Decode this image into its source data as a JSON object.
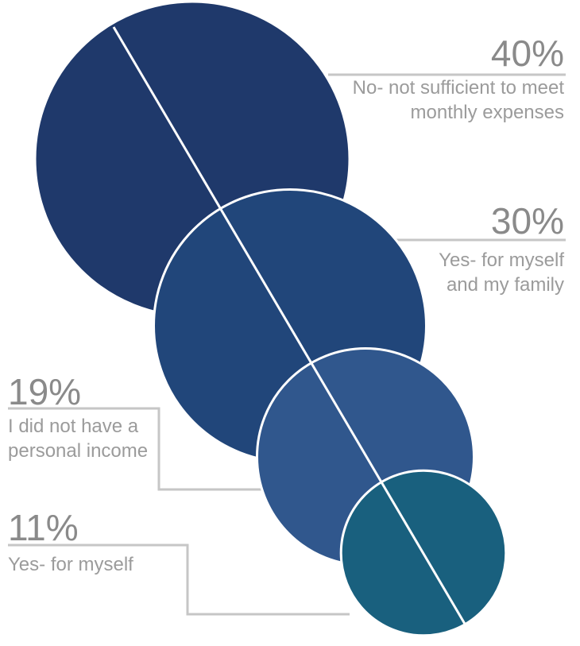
{
  "chart_data": {
    "type": "bubble",
    "title": "",
    "series": [
      {
        "label": "No- not sufficient to meet monthly expenses",
        "value": 40,
        "percent_label": "40%",
        "color": "#1f396b"
      },
      {
        "label": "Yes- for myself and my family",
        "value": 30,
        "percent_label": "30%",
        "color": "#21467a"
      },
      {
        "label": "I did not have a personal income",
        "value": 19,
        "percent_label": "19%",
        "color": "#30578d"
      },
      {
        "label": "Yes- for myself",
        "value": 11,
        "percent_label": "11%",
        "color": "#19607e"
      }
    ]
  },
  "colors": {
    "label_text": "#9b9b9b",
    "leader_line": "#c6c6c6",
    "divider_line": "#ffffff"
  }
}
